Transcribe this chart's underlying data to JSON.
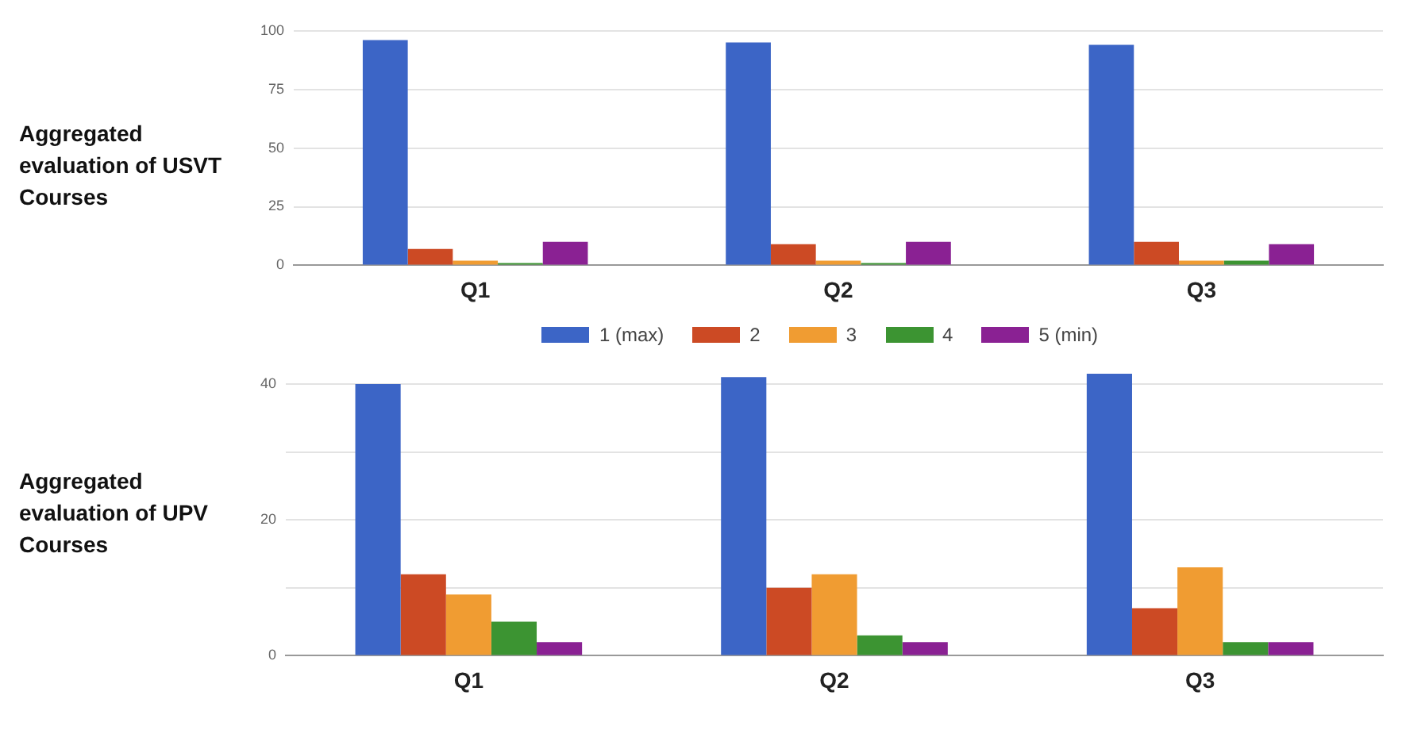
{
  "chart_data": [
    {
      "type": "bar",
      "title": "Aggregated evaluation of USVT Courses",
      "categories": [
        "Q1",
        "Q2",
        "Q3"
      ],
      "series": [
        {
          "color": "#3c65c6",
          "values": [
            96,
            95,
            94
          ]
        },
        {
          "color": "#cc4a24",
          "values": [
            7,
            9,
            10
          ]
        },
        {
          "color": "#f09c32",
          "values": [
            2,
            2,
            2
          ]
        },
        {
          "color": "#3c9432",
          "values": [
            1,
            1,
            2
          ]
        },
        {
          "color": "#8a2193",
          "values": [
            10,
            10,
            9
          ]
        }
      ],
      "ylim": [
        0,
        100
      ],
      "yticks": [
        0,
        25,
        50,
        75,
        100
      ],
      "grid": "y",
      "legend": false
    },
    {
      "type": "bar",
      "title": "Aggregated evaluation of UPV Courses",
      "categories": [
        "Q1",
        "Q2",
        "Q3"
      ],
      "series": [
        {
          "name": "1 (max)",
          "color": "#3c65c6",
          "values": [
            40,
            41,
            41.5
          ]
        },
        {
          "name": "2",
          "color": "#cc4a24",
          "values": [
            12,
            10,
            7
          ]
        },
        {
          "name": "3",
          "color": "#f09c32",
          "values": [
            9,
            12,
            13
          ]
        },
        {
          "name": "4",
          "color": "#3c9432",
          "values": [
            5,
            3,
            2
          ]
        },
        {
          "name": "5 (min)",
          "color": "#8a2193",
          "values": [
            2,
            2,
            2
          ]
        }
      ],
      "ylim": [
        0,
        42
      ],
      "yticks": [
        0,
        {
          "value": 10,
          "label": null
        },
        20,
        {
          "value": 30,
          "label": null
        },
        40
      ],
      "grid": "y",
      "legend": "top"
    }
  ]
}
